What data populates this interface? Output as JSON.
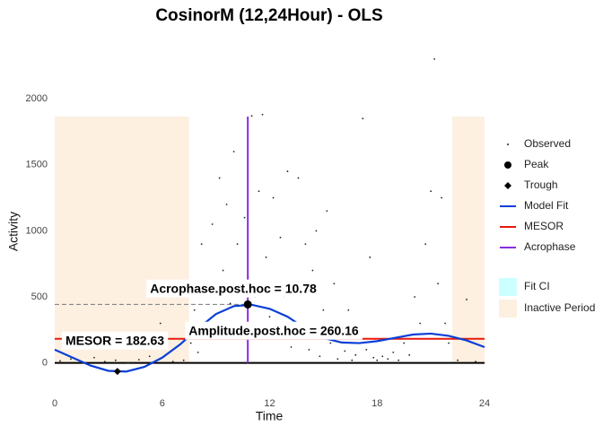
{
  "chart_data": {
    "type": "cosinor",
    "title": "CosinorM (12,24Hour) - OLS",
    "x_label": "Time",
    "y_label": "Activity",
    "xlim": [
      0,
      24
    ],
    "xticks": [
      0,
      6,
      12,
      18,
      24
    ],
    "ylim": [
      -240,
      2340
    ],
    "yticks": [
      0,
      500,
      1000,
      1500,
      2000
    ],
    "grid": false,
    "annotations": [
      "MESOR = 182.63",
      "Acrophase.post.hoc = 10.78",
      "Amplitude.post.hoc = 260.16"
    ],
    "band_ylim": [
      0,
      1865
    ],
    "series": [
      {
        "name": "Observed",
        "style": "points",
        "color": "#222222",
        "x": [
          0.3,
          0.9,
          1.5,
          2.2,
          2.8,
          3.4,
          4.1,
          4.7,
          5.3,
          5.9,
          6.6,
          7.2,
          7.6,
          7.8,
          8.0,
          8.2,
          8.4,
          8.6,
          8.8,
          9.0,
          9.2,
          9.4,
          9.6,
          9.8,
          10.0,
          10.2,
          10.4,
          10.6,
          10.8,
          11.0,
          11.2,
          11.4,
          11.6,
          11.8,
          12.0,
          12.2,
          12.4,
          12.6,
          12.8,
          13.0,
          13.2,
          13.4,
          13.6,
          13.8,
          14.0,
          14.2,
          14.4,
          14.6,
          14.8,
          15.0,
          15.2,
          15.4,
          15.6,
          15.8,
          16.0,
          16.2,
          16.4,
          16.6,
          16.8,
          17.0,
          17.2,
          17.4,
          17.6,
          17.8,
          18.0,
          18.3,
          18.6,
          18.9,
          19.2,
          19.5,
          19.8,
          20.1,
          20.4,
          20.7,
          21.0,
          21.2,
          21.4,
          21.6,
          21.8,
          22.0,
          22.5,
          23.0,
          23.5
        ],
        "values": [
          15,
          30,
          5,
          40,
          10,
          20,
          0,
          25,
          50,
          300,
          10,
          20,
          150,
          400,
          80,
          900,
          600,
          250,
          1050,
          300,
          1400,
          700,
          1200,
          450,
          1600,
          900,
          300,
          1100,
          650,
          1870,
          500,
          1300,
          1880,
          800,
          350,
          1250,
          200,
          950,
          500,
          1450,
          120,
          600,
          1400,
          300,
          900,
          100,
          700,
          1000,
          50,
          400,
          1150,
          150,
          600,
          30,
          280,
          90,
          400,
          20,
          60,
          300,
          1850,
          100,
          800,
          40,
          20,
          50,
          30,
          80,
          20,
          150,
          60,
          500,
          300,
          900,
          1300,
          2300,
          600,
          1250,
          300,
          150,
          20,
          480,
          10
        ]
      },
      {
        "name": "Peak",
        "style": "peak",
        "color": "#000000",
        "x": [
          10.78
        ],
        "values": [
          442.79
        ]
      },
      {
        "name": "Trough",
        "style": "trough",
        "color": "#000000",
        "x": [
          3.5
        ],
        "values": [
          -64
        ]
      },
      {
        "name": "Model Fit",
        "style": "line",
        "color": "#0a3fd6",
        "x": [
          0,
          1,
          2,
          3,
          4,
          5,
          6,
          7,
          8,
          9,
          10,
          11,
          12,
          13,
          14,
          15,
          16,
          17,
          18,
          19,
          20,
          21,
          22,
          23,
          24
        ],
        "values": [
          100,
          40,
          -20,
          -60,
          -65,
          -30,
          40,
          140,
          260,
          370,
          430,
          440,
          410,
          350,
          260,
          190,
          155,
          150,
          165,
          190,
          215,
          222,
          205,
          170,
          120
        ]
      },
      {
        "name": "MESOR",
        "style": "hline",
        "color": "#e8180c",
        "values": [
          182.63
        ]
      },
      {
        "name": "Acrophase",
        "style": "vline",
        "color": "#8a2be2",
        "x": [
          10.78
        ]
      },
      {
        "name": "Fit CI",
        "style": "ci",
        "color": "#ccffff"
      },
      {
        "name": "Inactive Period",
        "style": "rect",
        "color": "#fdf0e0",
        "x": [
          [
            0,
            7.5
          ],
          [
            22.2,
            24
          ]
        ]
      }
    ]
  }
}
